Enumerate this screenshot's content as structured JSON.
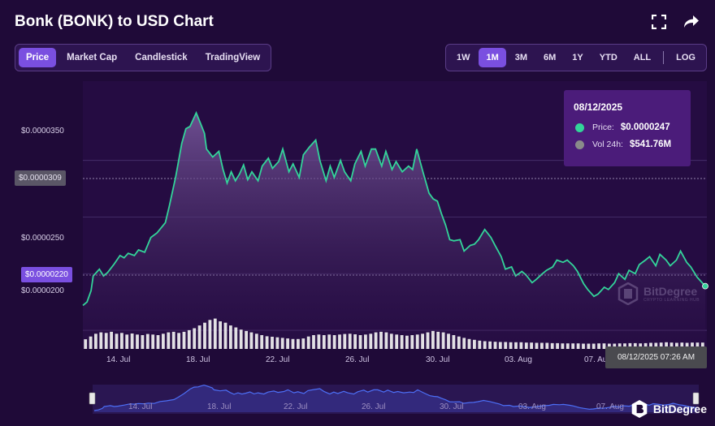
{
  "header": {
    "title": "Bonk (BONK) to USD Chart",
    "fullscreen_icon": "fullscreen-icon",
    "share_icon": "share-icon"
  },
  "tabs": [
    {
      "label": "Price",
      "active": true
    },
    {
      "label": "Market Cap",
      "active": false
    },
    {
      "label": "Candlestick",
      "active": false
    },
    {
      "label": "TradingView",
      "active": false
    }
  ],
  "ranges": [
    {
      "label": "1W",
      "active": false
    },
    {
      "label": "1M",
      "active": true
    },
    {
      "label": "3M",
      "active": false
    },
    {
      "label": "6M",
      "active": false
    },
    {
      "label": "1Y",
      "active": false
    },
    {
      "label": "YTD",
      "active": false
    },
    {
      "label": "ALL",
      "active": false
    }
  ],
  "log_label": "LOG",
  "colors": {
    "line": "#33d49a",
    "accent": "#7a4fe0",
    "background": "#1f0a38",
    "tooltip": "#4b1c7a",
    "volume": "#f2f2f2"
  },
  "chart_data": {
    "type": "line",
    "title": "Bonk (BONK) to USD Chart",
    "x_ticks": [
      "14. Jul",
      "18. Jul",
      "22. Jul",
      "26. Jul",
      "30. Jul",
      "03. Aug",
      "07. Aug"
    ],
    "y_ticks": [
      "$0.0000200",
      "$0.0000250",
      "$0.0000350"
    ],
    "y_range": [
      1.85e-05,
      4.2e-05
    ],
    "grid": true,
    "crosshair_label": "$0.0000309",
    "current_price_label": "$0.0000220",
    "time_label": "08/12/2025 07:26 AM",
    "price_series": {
      "name": "Price",
      "x": [
        0,
        0.2,
        0.4,
        0.5,
        0.7,
        0.8,
        1,
        1.2,
        1.5,
        1.8,
        2,
        2.2,
        2.5,
        2.7,
        3,
        3.3,
        3.6,
        4,
        4.2,
        4.5,
        4.8,
        5,
        5.2,
        5.5,
        5.7,
        5.9,
        6,
        6.3,
        6.6,
        6.8,
        7,
        7.2,
        7.4,
        7.6,
        7.8,
        8,
        8.2,
        8.5,
        8.7,
        9,
        9.2,
        9.5,
        9.7,
        10,
        10.2,
        10.5,
        10.7,
        11,
        11.3,
        11.5,
        11.8,
        12,
        12.2,
        12.5,
        12.7,
        13,
        13.2,
        13.5,
        13.7,
        14,
        14.2,
        14.5,
        14.7,
        15,
        15.2,
        15.5,
        15.8,
        16,
        16.2,
        16.5,
        16.8,
        17,
        17.2,
        17.4,
        17.6,
        17.8,
        18,
        18.3,
        18.5,
        18.8,
        19,
        19.2,
        19.5,
        19.8,
        20,
        20.3,
        20.5,
        20.8,
        21,
        21.3,
        21.5,
        21.8,
        22,
        22.3,
        22.5,
        22.8,
        23,
        23.3,
        23.5,
        23.8,
        24,
        24.3,
        24.5,
        24.8,
        25,
        25.3,
        25.5,
        25.8,
        26,
        26.3,
        26.5,
        26.8,
        27,
        27.3,
        27.5,
        27.8,
        28,
        28.3,
        28.5,
        28.8,
        29,
        29.3,
        29.5,
        29.8,
        30,
        30.2
      ],
      "values": [
        2.22e-05,
        2.25e-05,
        2.35e-05,
        2.48e-05,
        2.52e-05,
        2.54e-05,
        2.48e-05,
        2.51e-05,
        2.58e-05,
        2.66e-05,
        2.64e-05,
        2.68e-05,
        2.66e-05,
        2.71e-05,
        2.69e-05,
        2.82e-05,
        2.86e-05,
        2.95e-05,
        3.1e-05,
        3.35e-05,
        3.65e-05,
        3.78e-05,
        3.8e-05,
        3.92e-05,
        3.83e-05,
        3.74e-05,
        3.6e-05,
        3.53e-05,
        3.58e-05,
        3.42e-05,
        3.3e-05,
        3.4e-05,
        3.32e-05,
        3.38e-05,
        3.46e-05,
        3.33e-05,
        3.4e-05,
        3.32e-05,
        3.45e-05,
        3.52e-05,
        3.43e-05,
        3.49e-05,
        3.6e-05,
        3.4e-05,
        3.47e-05,
        3.35e-05,
        3.55e-05,
        3.62e-05,
        3.68e-05,
        3.5e-05,
        3.32e-05,
        3.45e-05,
        3.35e-05,
        3.5e-05,
        3.4e-05,
        3.32e-05,
        3.47e-05,
        3.58e-05,
        3.45e-05,
        3.6e-05,
        3.6e-05,
        3.45e-05,
        3.58e-05,
        3.42e-05,
        3.49e-05,
        3.4e-05,
        3.45e-05,
        3.42e-05,
        3.6e-05,
        3.4e-05,
        3.21e-05,
        3.16e-05,
        3.14e-05,
        3.03e-05,
        2.93e-05,
        2.8e-05,
        2.79e-05,
        2.8e-05,
        2.7e-05,
        2.75e-05,
        2.76e-05,
        2.8e-05,
        2.89e-05,
        2.82e-05,
        2.75e-05,
        2.65e-05,
        2.54e-05,
        2.56e-05,
        2.48e-05,
        2.52e-05,
        2.49e-05,
        2.42e-05,
        2.45e-05,
        2.5e-05,
        2.53e-05,
        2.56e-05,
        2.62e-05,
        2.6e-05,
        2.62e-05,
        2.57e-05,
        2.52e-05,
        2.41e-05,
        2.36e-05,
        2.3e-05,
        2.32e-05,
        2.38e-05,
        2.36e-05,
        2.42e-05,
        2.5e-05,
        2.45e-05,
        2.53e-05,
        2.5e-05,
        2.58e-05,
        2.62e-05,
        2.65e-05,
        2.57e-05,
        2.67e-05,
        2.62e-05,
        2.57e-05,
        2.62e-05,
        2.7e-05,
        2.6e-05,
        2.56e-05,
        2.47e-05,
        2.43e-05,
        2.39e-05
      ]
    },
    "volume_series": {
      "name": "Vol 24h",
      "values": [
        0.35,
        0.45,
        0.55,
        0.6,
        0.58,
        0.62,
        0.55,
        0.58,
        0.52,
        0.56,
        0.52,
        0.5,
        0.54,
        0.52,
        0.5,
        0.55,
        0.6,
        0.62,
        0.58,
        0.62,
        0.68,
        0.75,
        0.85,
        0.95,
        1.05,
        1.1,
        1.0,
        0.95,
        0.85,
        0.78,
        0.7,
        0.65,
        0.6,
        0.55,
        0.5,
        0.46,
        0.44,
        0.42,
        0.4,
        0.38,
        0.36,
        0.36,
        0.38,
        0.45,
        0.5,
        0.52,
        0.5,
        0.52,
        0.5,
        0.52,
        0.54,
        0.55,
        0.53,
        0.5,
        0.52,
        0.55,
        0.6,
        0.62,
        0.6,
        0.55,
        0.52,
        0.5,
        0.48,
        0.5,
        0.52,
        0.55,
        0.6,
        0.65,
        0.62,
        0.6,
        0.55,
        0.5,
        0.45,
        0.4,
        0.36,
        0.33,
        0.3,
        0.28,
        0.27,
        0.26,
        0.25,
        0.25,
        0.24,
        0.24,
        0.24,
        0.23,
        0.23,
        0.22,
        0.22,
        0.22,
        0.21,
        0.21,
        0.2,
        0.2,
        0.2,
        0.2,
        0.19,
        0.19,
        0.19,
        0.2,
        0.2,
        0.19,
        0.19,
        0.2,
        0.2,
        0.21,
        0.21,
        0.2,
        0.21,
        0.22,
        0.22,
        0.23,
        0.24,
        0.23,
        0.22,
        0.23,
        0.22,
        0.23,
        0.23,
        0.23
      ]
    },
    "tooltip": {
      "date": "08/12/2025",
      "price_label": "Price:",
      "price_value": "$0.0000247",
      "volume_label": "Vol 24h:",
      "volume_value": "$541.76M"
    }
  },
  "navigator": {
    "labels": [
      "14. Jul",
      "18. Jul",
      "22. Jul",
      "26. Jul",
      "30. Jul",
      "03. Aug",
      "07. Aug"
    ]
  },
  "watermark": {
    "name": "BitDegree",
    "sub": "CRYPTO LEARNING HUB"
  },
  "brand": {
    "name": "BitDegree"
  }
}
